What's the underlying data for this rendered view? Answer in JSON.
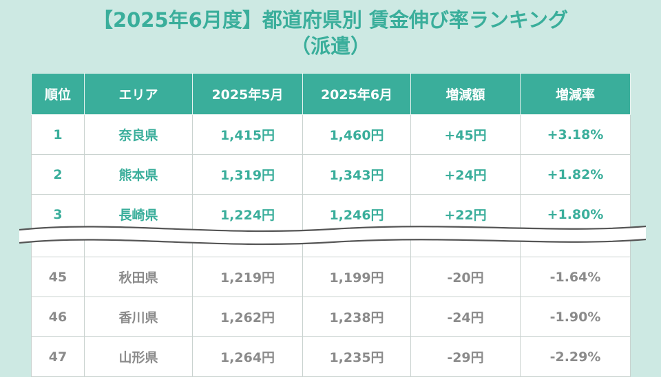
{
  "title": {
    "line1": "【2025年6月度】都道府県別 賃金伸び率ランキング",
    "line2": "（派遣）"
  },
  "table": {
    "headers": [
      "順位",
      "エリア",
      "2025年5月",
      "2025年6月",
      "増減額",
      "増減率"
    ],
    "top_rows": [
      {
        "rank": "1",
        "area": "奈良県",
        "may": "1,415円",
        "jun": "1,460円",
        "diff": "+45円",
        "rate": "+3.18%"
      },
      {
        "rank": "2",
        "area": "熊本県",
        "may": "1,319円",
        "jun": "1,343円",
        "diff": "+24円",
        "rate": "+1.82%"
      },
      {
        "rank": "3",
        "area": "長崎県",
        "may": "1,224円",
        "jun": "1,246円",
        "diff": "+22円",
        "rate": "+1.80%"
      }
    ],
    "bottom_rows": [
      {
        "rank": "45",
        "area": "秋田県",
        "may": "1,219円",
        "jun": "1,199円",
        "diff": "-20円",
        "rate": "-1.64%"
      },
      {
        "rank": "46",
        "area": "香川県",
        "may": "1,262円",
        "jun": "1,238円",
        "diff": "-24円",
        "rate": "-1.90%"
      },
      {
        "rank": "47",
        "area": "山形県",
        "may": "1,264円",
        "jun": "1,235円",
        "diff": "-29円",
        "rate": "-2.29%"
      }
    ]
  },
  "colors": {
    "accent": "#3aae9b",
    "background": "#cde9e3",
    "lower_text": "#8b8b8b"
  }
}
